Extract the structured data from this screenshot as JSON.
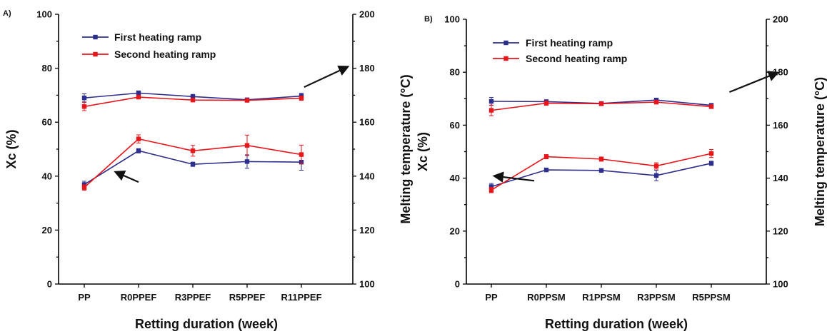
{
  "chart_data": [
    {
      "type": "line",
      "panel_label": "A)",
      "categories": [
        "PP",
        "R0PPEF",
        "R3PPEF",
        "R5PPEF",
        "R11PPEF"
      ],
      "xlabel": "Retting duration (week)",
      "ylabel": "Xc (%)",
      "y2label": "Melting temperature (°C)",
      "ylim": [
        0,
        100
      ],
      "y2lim": [
        100,
        200
      ],
      "yticks": [
        0,
        20,
        40,
        60,
        80,
        100
      ],
      "y2ticks": [
        100,
        120,
        140,
        160,
        180,
        200
      ],
      "legend": [
        "First heating ramp",
        "Second heating ramp"
      ],
      "legend_position": "top-left",
      "series": [
        {
          "name": "First heating ramp",
          "axis": "y2",
          "color": "#2e2e8c",
          "values": [
            169,
            170.8,
            169.5,
            168.3,
            169.7
          ],
          "err": [
            1.5,
            0.8,
            0.8,
            0.6,
            1.0
          ]
        },
        {
          "name": "Second heating ramp",
          "axis": "y2",
          "color": "#e8151b",
          "values": [
            165.8,
            169.3,
            168.2,
            168.1,
            168.9
          ],
          "err": [
            1.5,
            0.6,
            0.6,
            0.6,
            0.8
          ]
        },
        {
          "name": "First heating ramp",
          "axis": "y",
          "color": "#2e2e8c",
          "values": [
            36.9,
            49.4,
            44.4,
            45.4,
            45.2
          ],
          "err": [
            1.2,
            0.8,
            0.8,
            2.5,
            3.0
          ]
        },
        {
          "name": "Second heating ramp",
          "axis": "y",
          "color": "#e8151b",
          "values": [
            35.8,
            53.8,
            49.4,
            51.4,
            48.0
          ],
          "err": [
            1.0,
            1.5,
            2.0,
            3.8,
            3.5
          ]
        }
      ],
      "arrows": [
        {
          "points_to": "y",
          "from": [
            1,
            37.8
          ],
          "to": [
            0.58,
            41.5
          ]
        },
        {
          "points_to": "y2",
          "from": [
            4.05,
            173
          ],
          "to": [
            4.85,
            180.5
          ]
        }
      ]
    },
    {
      "type": "line",
      "panel_label": "B)",
      "categories": [
        "PP",
        "R0PPSM",
        "R1PPSM",
        "R3PPSM",
        "R5PPSM"
      ],
      "xlabel": "Retting duration (week)",
      "ylabel": "Xc (%)",
      "y2label": "Melting temperature (°C)",
      "ylim": [
        0,
        100
      ],
      "y2lim": [
        100,
        200
      ],
      "yticks": [
        0,
        20,
        40,
        60,
        80,
        100
      ],
      "y2ticks": [
        100,
        120,
        140,
        160,
        180,
        200
      ],
      "legend": [
        "First heating ramp",
        "Second heating ramp"
      ],
      "legend_position": "top-left",
      "series": [
        {
          "name": "First heating ramp",
          "axis": "y2",
          "color": "#2e2e8c",
          "values": [
            169,
            168.9,
            168.2,
            169.5,
            167.5
          ],
          "err": [
            1.5,
            0.6,
            0.5,
            0.6,
            0.6
          ]
        },
        {
          "name": "Second heating ramp",
          "axis": "y2",
          "color": "#e8151b",
          "values": [
            165.6,
            168.3,
            168.1,
            168.7,
            167.0
          ],
          "err": [
            2.0,
            0.8,
            0.5,
            0.6,
            0.6
          ]
        },
        {
          "name": "First heating ramp",
          "axis": "y",
          "color": "#2e2e8c",
          "values": [
            36.8,
            43.1,
            42.9,
            41.0,
            45.6
          ],
          "err": [
            1.2,
            0.6,
            0.6,
            2.0,
            0.8
          ]
        },
        {
          "name": "Second heating ramp",
          "axis": "y",
          "color": "#e8151b",
          "values": [
            35.5,
            48.1,
            47.2,
            44.6,
            49.3
          ],
          "err": [
            1.0,
            0.8,
            0.8,
            1.2,
            1.5
          ]
        }
      ],
      "arrows": [
        {
          "points_to": "y",
          "from": [
            0.78,
            39
          ],
          "to": [
            0.06,
            40.8
          ]
        },
        {
          "points_to": "y2",
          "from": [
            4.33,
            172.5
          ],
          "to": [
            5.2,
            179.8
          ]
        }
      ]
    }
  ]
}
